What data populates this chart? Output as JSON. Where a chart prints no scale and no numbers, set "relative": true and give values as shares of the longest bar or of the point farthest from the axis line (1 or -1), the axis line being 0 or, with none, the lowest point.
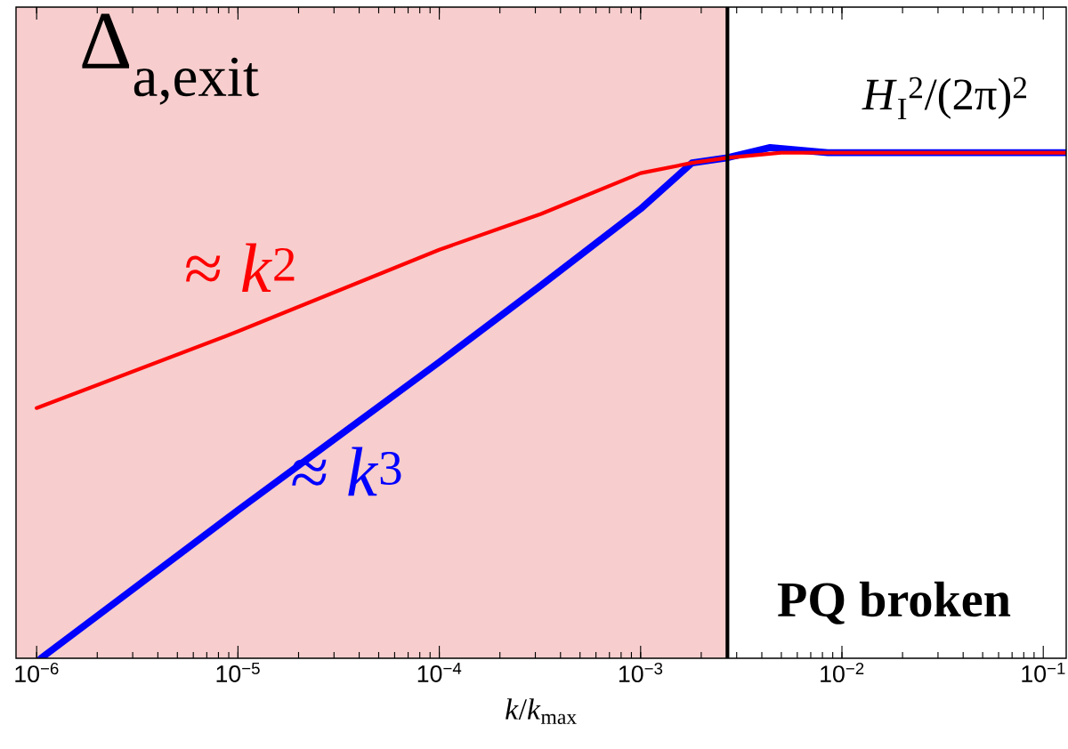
{
  "chart_data": {
    "type": "line",
    "relative": true,
    "log": "x",
    "xlabel": "*k*/*k*$_{max}$",
    "xlim": [
      7.9e-07,
      0.13
    ],
    "xticks": [
      {
        "value": 1e-06,
        "label": "10$^{−6}$"
      },
      {
        "value": 1e-05,
        "label": "10$^{−5}$"
      },
      {
        "value": 0.0001,
        "label": "10$^{−4}$"
      },
      {
        "value": 0.001,
        "label": "10$^{−3}$"
      },
      {
        "value": 0.01,
        "label": "10$^{−2}$"
      },
      {
        "value": 0.1,
        "label": "10$^{−1}$"
      }
    ],
    "series": [
      {
        "name": "≈ *k*$^{2}$",
        "color": "#ff0000",
        "x": [
          1e-06,
          1e-05,
          0.0001,
          0.00032,
          0.001,
          0.0018,
          0.0027,
          0.005,
          0.01,
          0.13
        ],
        "values": [
          0.49,
          0.64,
          0.8,
          0.87,
          0.95,
          0.97,
          0.98,
          0.99,
          0.99,
          0.99
        ]
      },
      {
        "name": "≈ *k*$^{3}$",
        "color": "#0000ff",
        "x": [
          1.05e-06,
          1e-05,
          0.0001,
          0.00032,
          0.001,
          0.0018,
          0.0027,
          0.0044,
          0.0085,
          0.13
        ],
        "values": [
          0,
          0.29,
          0.58,
          0.73,
          0.88,
          0.97,
          0.98,
          1,
          0.99,
          0.99
        ]
      }
    ],
    "bands": [
      {
        "axis": "x",
        "from": 7.9e-07,
        "to": 0.0027,
        "color": "#f7cdcd"
      }
    ],
    "ref_lines": [
      {
        "axis": "x",
        "value": 0.0027,
        "color": "#000000"
      }
    ],
    "annotations": [
      "Δ$_{a,exit}$",
      "*H*$_{I}$$^{2}$/(2π)$^{2}$",
      "**PQ broken**"
    ],
    "marker": "none",
    "line_style": "solid",
    "grid": false
  }
}
